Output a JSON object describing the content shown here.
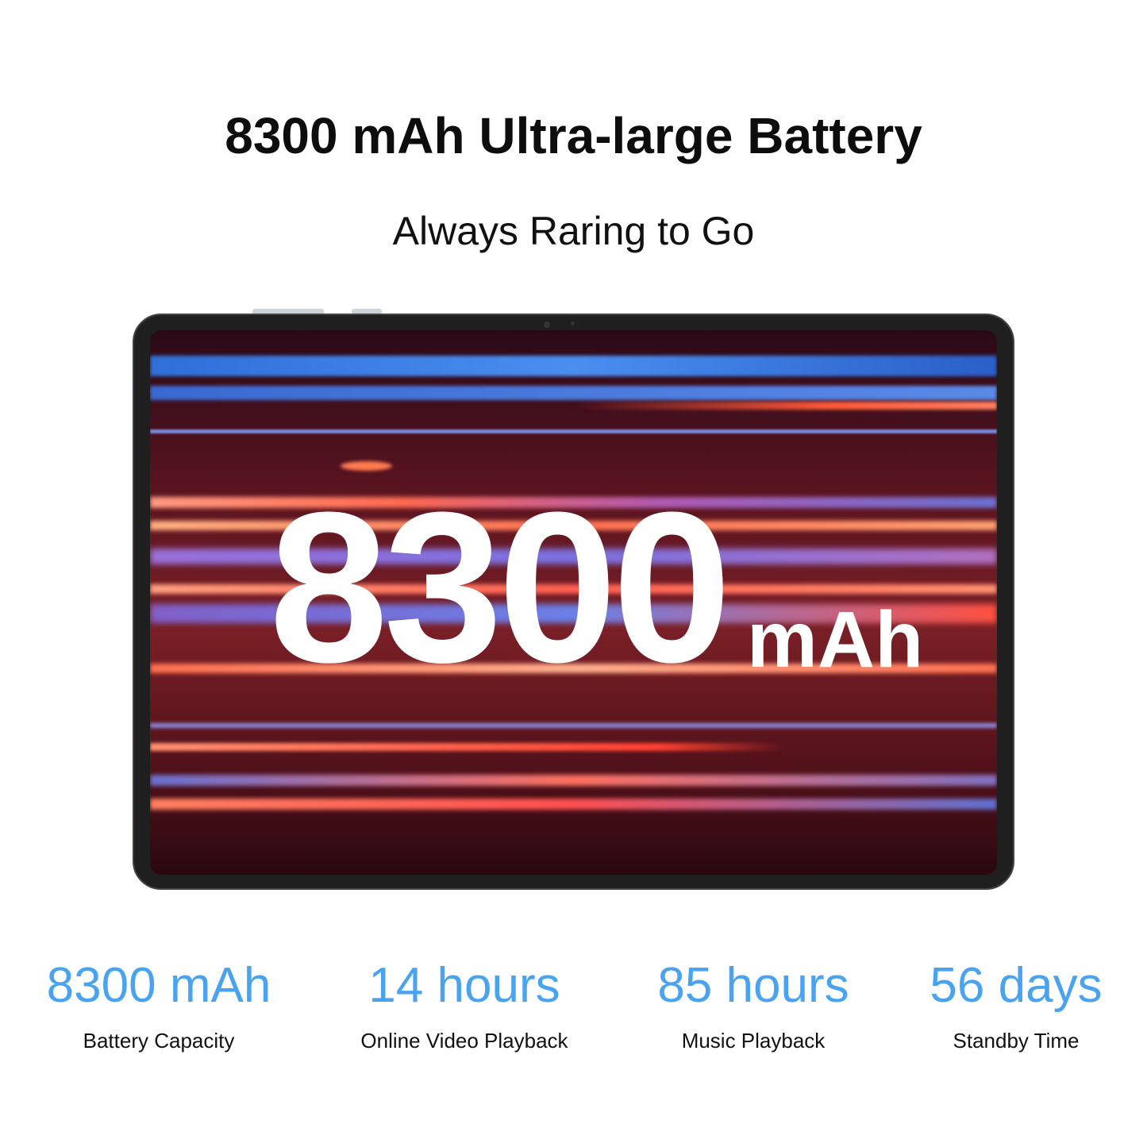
{
  "header": {
    "title": "8300 mAh Ultra-large Battery",
    "subtitle": "Always Raring to Go"
  },
  "screen": {
    "big_number": "8300",
    "unit": "mAh"
  },
  "stats": [
    {
      "value": "8300 mAh",
      "label": "Battery Capacity"
    },
    {
      "value": "14 hours",
      "label": "Online Video Playback"
    },
    {
      "value": "85 hours",
      "label": "Music Playback"
    },
    {
      "value": "56 days",
      "label": "Standby Time"
    }
  ],
  "colors": {
    "accent": "#4aa3f0"
  }
}
